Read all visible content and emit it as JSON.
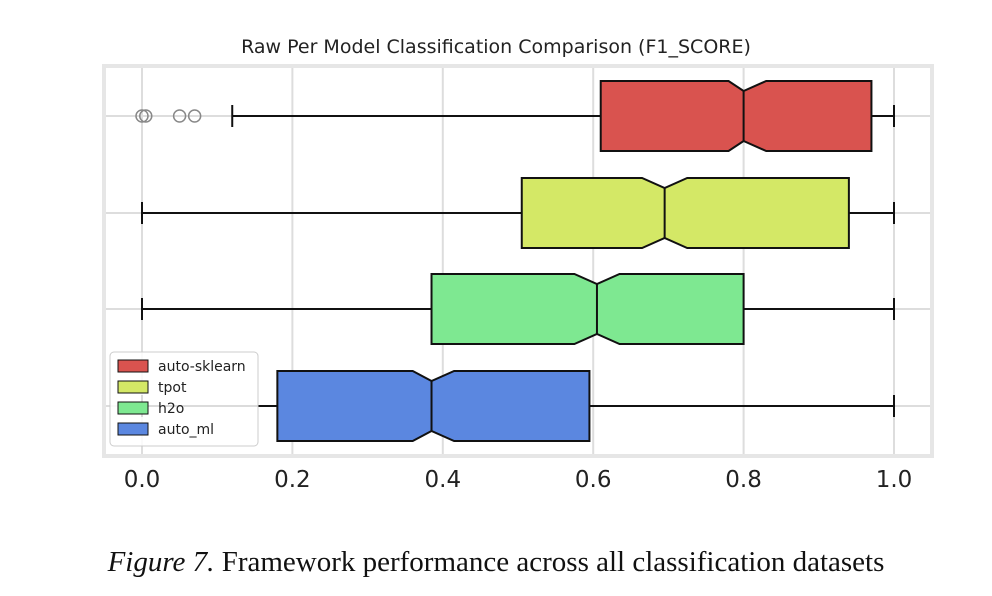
{
  "chart_data": {
    "type": "boxplot",
    "orientation": "horizontal",
    "notched": true,
    "title": "Raw Per Model Classification Comparison (F1_SCORE)",
    "xlabel": "",
    "ylabel": "",
    "xlim": [
      -0.05,
      1.05
    ],
    "x_ticks": [
      "0.0",
      "0.2",
      "0.4",
      "0.6",
      "0.8",
      "1.0"
    ],
    "x_tick_values": [
      0.0,
      0.2,
      0.4,
      0.6,
      0.8,
      1.0
    ],
    "grid": true,
    "legend_position": "lower-left",
    "series": [
      {
        "name": "auto-sklearn",
        "color": "#d9534f",
        "whisker_low": 0.12,
        "q1": 0.61,
        "median": 0.8,
        "q3": 0.97,
        "whisker_high": 1.0,
        "notch_low": 0.78,
        "notch_high": 0.83,
        "outliers": [
          0.0,
          0.005,
          0.05,
          0.07
        ]
      },
      {
        "name": "tpot",
        "color": "#d4e866",
        "whisker_low": 0.0,
        "q1": 0.505,
        "median": 0.695,
        "q3": 0.94,
        "whisker_high": 1.0,
        "notch_low": 0.665,
        "notch_high": 0.725,
        "outliers": []
      },
      {
        "name": "h2o",
        "color": "#7ee891",
        "whisker_low": 0.0,
        "q1": 0.385,
        "median": 0.605,
        "q3": 0.8,
        "whisker_high": 1.0,
        "notch_low": 0.575,
        "notch_high": 0.635,
        "outliers": []
      },
      {
        "name": "auto_ml",
        "color": "#5b87e0",
        "whisker_low": 0.0,
        "q1": 0.18,
        "median": 0.385,
        "q3": 0.595,
        "whisker_high": 1.0,
        "notch_low": 0.36,
        "notch_high": 0.415,
        "outliers": []
      }
    ]
  },
  "caption": {
    "label": "Figure 7.",
    "text": "Framework performance across all classification datasets"
  }
}
